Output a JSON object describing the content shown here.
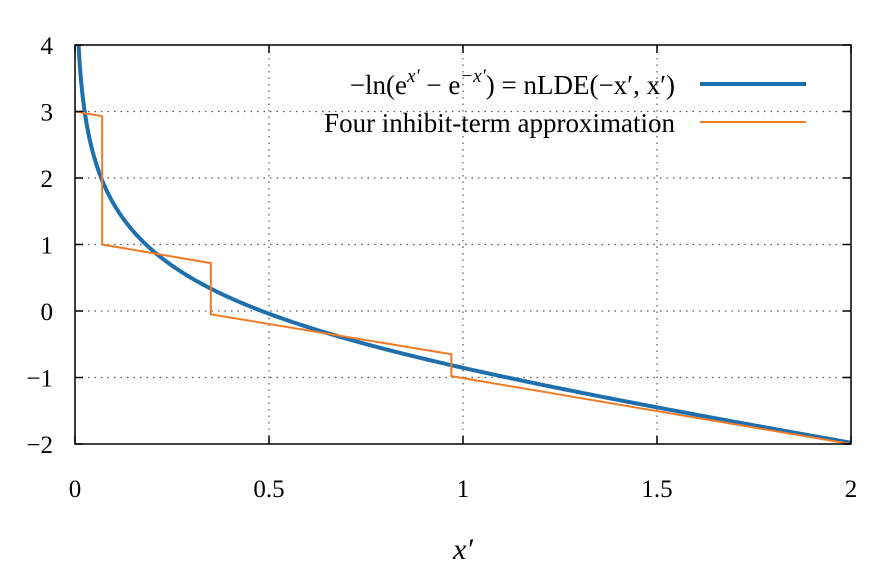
{
  "chart_data": {
    "type": "line",
    "title": "",
    "xlabel": "x′",
    "ylabel": "",
    "xlim": [
      0,
      2
    ],
    "ylim": [
      -2,
      4
    ],
    "xticks": [
      0,
      0.5,
      1,
      1.5,
      2
    ],
    "xtick_labels": [
      "0",
      "0.5",
      "1",
      "1.5",
      "2"
    ],
    "yticks": [
      -2,
      -1,
      0,
      1,
      2,
      3,
      4
    ],
    "ytick_labels": [
      "−2",
      "−1",
      "0",
      "1",
      "2",
      "3",
      "4"
    ],
    "grid": true,
    "legend_position": "top-right",
    "series": [
      {
        "name": "−ln(e^{x′} − e^{−x′}) = nLDE(−x′, x′)",
        "legend_main": "−ln(e",
        "legend_sup1": "x′",
        "legend_mid": " − e",
        "legend_sup2": "−x′",
        "legend_tail": ") = nLDE(−x′, x′)",
        "color": "#1f6fad",
        "function": "-ln(exp(x) - exp(-x))",
        "x_start": 0.009,
        "x_end": 2
      },
      {
        "name": "Four inhibit-term approximation",
        "color": "#f07b27",
        "points": [
          [
            0,
            3.0
          ],
          [
            0.07,
            2.93
          ],
          [
            0.07,
            1.0
          ],
          [
            0.35,
            0.72
          ],
          [
            0.35,
            -0.05
          ],
          [
            0.97,
            -0.65
          ],
          [
            0.97,
            -0.98
          ],
          [
            2.0,
            -2.0
          ]
        ]
      }
    ]
  }
}
